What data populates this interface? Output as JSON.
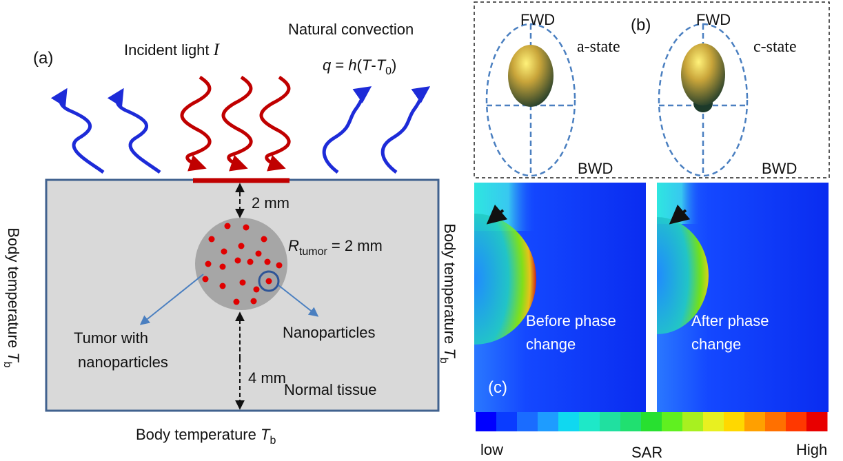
{
  "panel_a": {
    "label": "(a)",
    "incident_light": {
      "text": "Incident light ",
      "symbol": "I"
    },
    "convection_title": "Natural convection",
    "convection_formula": [
      "q",
      " = ",
      "h",
      "(",
      "T",
      "-",
      "T",
      "0",
      ")"
    ],
    "top_distance": "2 mm",
    "tumor_radius": {
      "symbol": "R",
      "sub": "tumor",
      "text": " = 2 mm"
    },
    "tumor_label": [
      "Tumor with",
      "nanoparticles"
    ],
    "nanoparticles_label": "Nanoparticles",
    "bottom_distance": "4 mm",
    "tissue_label": "Normal tissue",
    "left_boundary": {
      "text": "Body temperature ",
      "symbol": "T",
      "sub": "b"
    },
    "right_boundary": {
      "text": "Body temperature ",
      "symbol": "T",
      "sub": "b"
    },
    "bottom_boundary": {
      "text": "Body temperature ",
      "symbol": "T",
      "sub": "b"
    }
  },
  "panel_b": {
    "label": "(b)",
    "left": {
      "top": "FWD",
      "bottom": "BWD",
      "state": "a-state"
    },
    "right": {
      "top": "FWD",
      "bottom": "BWD",
      "state": "c-state"
    }
  },
  "panel_c": {
    "label": "(c)",
    "left_caption": [
      "Before phase",
      "change"
    ],
    "right_caption": [
      "After phase",
      "change"
    ],
    "colorbar": {
      "low": "low",
      "title": "SAR",
      "high": "High"
    }
  }
}
